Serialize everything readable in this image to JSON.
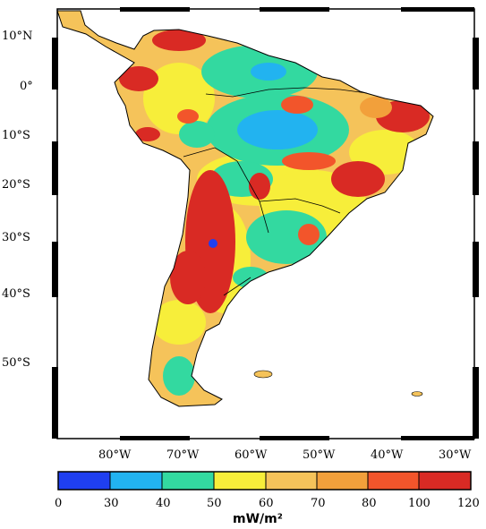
{
  "map": {
    "latitude_labels": [
      "10°N",
      "0°",
      "10°S",
      "20°S",
      "30°S",
      "40°S",
      "50°S"
    ],
    "longitude_labels": [
      "80°W",
      "70°W",
      "60°W",
      "50°W",
      "40°W",
      "30°W"
    ]
  },
  "colorbar": {
    "ticks": [
      "0",
      "30",
      "40",
      "50",
      "60",
      "70",
      "80",
      "100",
      "120"
    ],
    "colors": [
      "#1f3ff0",
      "#22b3f0",
      "#33d9a0",
      "#f7ee3a",
      "#f5c35a",
      "#f2a03b",
      "#f2552b",
      "#d92a24"
    ],
    "unit": "mW/m²"
  },
  "legend_colors": {
    "blue": "#1f3ff0",
    "light_blue": "#22b3f0",
    "green": "#33d9a0",
    "yellow": "#f7ee3a",
    "light_orange": "#f5c35a",
    "orange": "#f2a03b",
    "red": "#f2552b",
    "dark_red": "#d92a24"
  }
}
